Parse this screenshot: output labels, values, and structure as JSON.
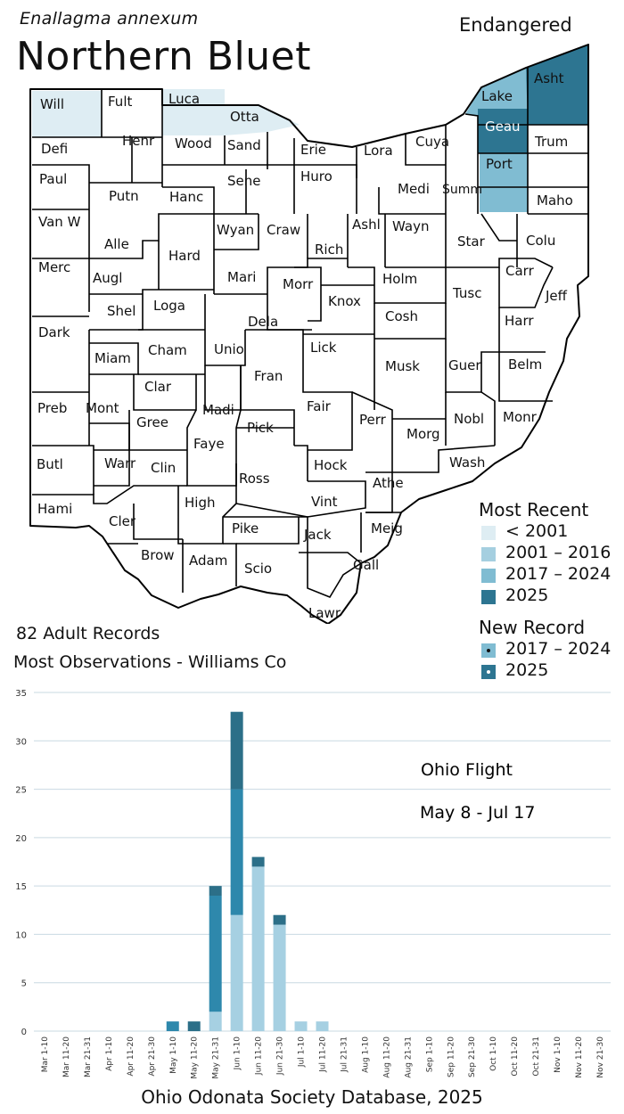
{
  "header": {
    "scientific_name": "Enallagma annexum",
    "common_name": "Northern Bluet",
    "status": "Endangered"
  },
  "colors": {
    "pre2001": "#deedf3",
    "y2001_2016": "#a5cfe0",
    "y2017_2024": "#80bcd2",
    "y2025": "#2d7591",
    "bar_light": "#a6d0e2",
    "bar_mid": "#2e88ac",
    "bar_dark": "#2c6f88",
    "grid": "#c9d9e2"
  },
  "map": {
    "counties": [
      "Will",
      "Fult",
      "Luca",
      "Otta",
      "Asht",
      "Lake",
      "Geau",
      "Trum",
      "Defi",
      "Henr",
      "Wood",
      "Sand",
      "Erie",
      "Lora",
      "Cuya",
      "Port",
      "Paul",
      "Putn",
      "Hanc",
      "Sene",
      "Huro",
      "Medi",
      "Summ",
      "Maho",
      "Van W",
      "Alle",
      "Wyan",
      "Craw",
      "Rich",
      "Ashl",
      "Wayn",
      "Star",
      "Colu",
      "Merc",
      "Augl",
      "Hard",
      "Mari",
      "Morr",
      "Holm",
      "Carr",
      "Shel",
      "Loga",
      "Knox",
      "Tusc",
      "Jeff",
      "Dark",
      "Dela",
      "Cosh",
      "Harr",
      "Miam",
      "Cham",
      "Unio",
      "Lick",
      "Musk",
      "Guer",
      "Belm",
      "Clar",
      "Fran",
      "Preb",
      "Mont",
      "Madi",
      "Fair",
      "Perr",
      "Nobl",
      "Monr",
      "Gree",
      "Pick",
      "Morg",
      "Faye",
      "Butl",
      "Warr",
      "Clin",
      "Hock",
      "Wash",
      "Ross",
      "Athe",
      "Hami",
      "Cler",
      "High",
      "Vint",
      "Meig",
      "Pike",
      "Jack",
      "Brow",
      "Adam",
      "Gall",
      "Scio",
      "Lawr"
    ]
  },
  "legend": {
    "most_recent_title": "Most Recent",
    "items": [
      "< 2001",
      "2001 – 2016",
      "2017 – 2024",
      "2025"
    ],
    "new_record_title": "New Record",
    "new_items": [
      "2017 – 2024",
      "2025"
    ]
  },
  "stats": {
    "records": "82 Adult Records",
    "most_obs": "Most Observations - Williams Co"
  },
  "chart_data": {
    "type": "bar",
    "stacked": true,
    "categories": [
      "Mar 1-10",
      "Mar 11-20",
      "Mar 21-31",
      "Apr 1-10",
      "Apr 11-20",
      "Apr 21-30",
      "May 1-10",
      "May 11-20",
      "May 21-31",
      "Jun 1-10",
      "Jun 11-20",
      "Jun 21-30",
      "Jul 1-10",
      "Jul 11-20",
      "Jul 21-31",
      "Aug 1-10",
      "Aug 11-20",
      "Aug 21-31",
      "Sep 1-10",
      "Sep 11-20",
      "Sep 21-30",
      "Oct 1-10",
      "Oct 11-20",
      "Oct 21-31",
      "Nov 1-10",
      "Nov 11-20",
      "Nov 21-30"
    ],
    "series": [
      {
        "values": [
          0,
          0,
          0,
          0,
          0,
          0,
          0,
          0,
          2,
          12,
          17,
          11,
          1,
          1,
          0,
          0,
          0,
          0,
          0,
          0,
          0,
          0,
          0,
          0,
          0,
          0,
          0
        ]
      },
      {
        "values": [
          0,
          0,
          0,
          0,
          0,
          0,
          1,
          0,
          12,
          13,
          0,
          0,
          0,
          0,
          0,
          0,
          0,
          0,
          0,
          0,
          0,
          0,
          0,
          0,
          0,
          0,
          0
        ]
      },
      {
        "values": [
          0,
          0,
          0,
          0,
          0,
          0,
          0,
          1,
          1,
          8,
          1,
          1,
          0,
          0,
          0,
          0,
          0,
          0,
          0,
          0,
          0,
          0,
          0,
          0,
          0,
          0,
          0
        ]
      }
    ],
    "ylim": [
      0,
      35
    ],
    "yticks": [
      0,
      5,
      10,
      15,
      20,
      25,
      30,
      35
    ],
    "annotation_title": "Ohio Flight",
    "annotation_range": "May 8 - Jul 17",
    "grid": true
  },
  "footer": "Ohio Odonata Society Database, 2025"
}
